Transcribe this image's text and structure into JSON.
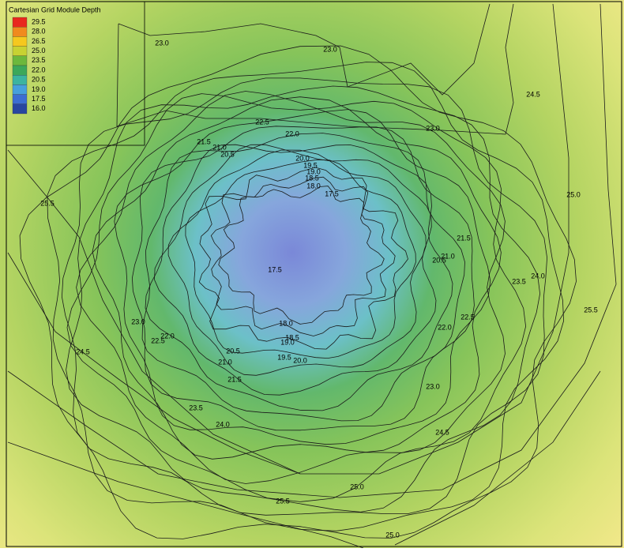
{
  "legend": {
    "title": "Cartesian Grid Module Depth",
    "entries": [
      "29.5",
      "28.0",
      "26.5",
      "25.0",
      "23.5",
      "22.0",
      "20.5",
      "19.0",
      "17.5",
      "16.0"
    ],
    "colors": [
      "#e8281e",
      "#f08a1e",
      "#f5c81e",
      "#c8d232",
      "#6cb83c",
      "#3ca85a",
      "#3cb4a0",
      "#46a0dc",
      "#3c6ed2",
      "#2846a0"
    ]
  },
  "contour_labels": [
    "23.0",
    "23.0",
    "24.5",
    "22.5",
    "22.0",
    "23.0",
    "21.5",
    "21.0",
    "20.5",
    "20.0",
    "19.5",
    "19.0",
    "18.5",
    "18.0",
    "17.5",
    "25.0",
    "25.5",
    "21.5",
    "21.0",
    "20.5",
    "24.0",
    "23.5",
    "17.5",
    "25.5",
    "23.0",
    "22.5",
    "22.0",
    "18.0",
    "18.5",
    "19.0",
    "22.0",
    "22.5",
    "24.5",
    "20.5",
    "19.5",
    "20.0",
    "21.0",
    "21.5",
    "23.0",
    "23.5",
    "24.0",
    "24.5",
    "25.0",
    "25.5",
    "25.0"
  ]
}
